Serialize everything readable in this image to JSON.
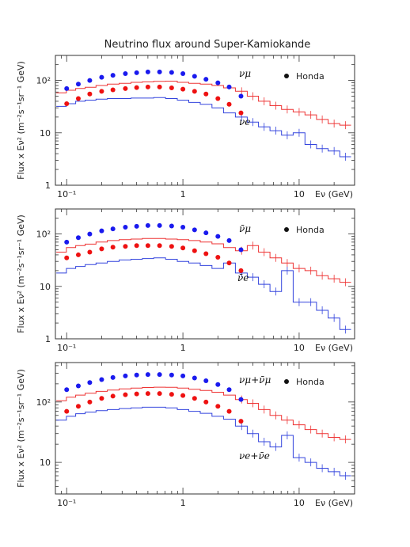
{
  "title": "Neutrino flux around Super-Kamiokande",
  "chart_data": [
    {
      "type": "line",
      "ylabel": "Flux x Eν² (m⁻²s⁻¹sr⁻¹ GeV)",
      "xlabel": "Eν (GeV)",
      "x_scale": "log",
      "y_scale": "log",
      "xlim": [
        0.08,
        30
      ],
      "ylim": [
        1,
        300
      ],
      "x_tick_labels": [
        "10⁻¹",
        "1",
        "10"
      ],
      "y_tick_labels": [
        "1",
        "10",
        "10²"
      ],
      "legend": {
        "marker_label": "Honda",
        "placement": "top-right"
      },
      "annotations": [
        "νμ",
        "νe"
      ],
      "series": [
        {
          "color": "#ee3333",
          "style": "step",
          "x": [
            0.09,
            0.11,
            0.13,
            0.16,
            0.2,
            0.25,
            0.32,
            0.4,
            0.5,
            0.63,
            0.8,
            1.0,
            1.26,
            1.58,
            2.0,
            2.5,
            3.2,
            4.0,
            5.0,
            6.3,
            7.9,
            10,
            12.6,
            15.8,
            20,
            25
          ],
          "values": [
            58,
            65,
            70,
            74,
            80,
            85,
            88,
            92,
            94,
            96,
            97,
            92,
            88,
            85,
            80,
            72,
            62,
            50,
            40,
            33,
            28,
            25,
            22,
            18,
            15,
            14
          ]
        },
        {
          "color": "#3344dd",
          "style": "step",
          "x": [
            0.09,
            0.11,
            0.13,
            0.16,
            0.2,
            0.25,
            0.32,
            0.4,
            0.5,
            0.63,
            0.8,
            1.0,
            1.26,
            1.58,
            2.0,
            2.5,
            3.2,
            4.0,
            5.0,
            6.3,
            7.9,
            10,
            12.6,
            15.8,
            20,
            25
          ],
          "values": [
            32,
            36,
            40,
            42,
            44,
            45,
            45,
            46,
            46,
            47,
            45,
            42,
            38,
            35,
            30,
            24,
            20,
            16,
            13,
            11,
            9,
            10,
            6,
            5,
            4.5,
            3.5
          ]
        },
        {
          "color": "#1a1aee",
          "style": "dots",
          "x": [
            0.1,
            0.126,
            0.158,
            0.2,
            0.25,
            0.32,
            0.4,
            0.5,
            0.63,
            0.8,
            1.0,
            1.26,
            1.58,
            2.0,
            2.5,
            3.16
          ],
          "values": [
            70,
            85,
            100,
            115,
            125,
            135,
            140,
            145,
            145,
            142,
            135,
            120,
            105,
            90,
            75,
            50
          ]
        },
        {
          "color": "#ee1111",
          "style": "dots",
          "x": [
            0.1,
            0.126,
            0.158,
            0.2,
            0.25,
            0.32,
            0.4,
            0.5,
            0.63,
            0.8,
            1.0,
            1.26,
            1.58,
            2.0,
            2.5,
            3.16
          ],
          "values": [
            36,
            45,
            55,
            62,
            66,
            70,
            73,
            75,
            75,
            72,
            68,
            62,
            55,
            45,
            35,
            24
          ]
        }
      ]
    },
    {
      "type": "line",
      "ylabel": "Flux x Eν² (m⁻²s⁻¹sr⁻¹ GeV)",
      "xlabel": "Eν (GeV)",
      "x_scale": "log",
      "y_scale": "log",
      "xlim": [
        0.08,
        30
      ],
      "ylim": [
        1,
        300
      ],
      "x_tick_labels": [
        "10⁻¹",
        "1",
        "10"
      ],
      "y_tick_labels": [
        "1",
        "10",
        "10²"
      ],
      "legend": {
        "marker_label": "Honda",
        "placement": "top-right"
      },
      "annotations": [
        "ν̄μ",
        "ν̄e"
      ],
      "series": [
        {
          "color": "#ee3333",
          "style": "step",
          "x": [
            0.09,
            0.11,
            0.13,
            0.16,
            0.2,
            0.25,
            0.32,
            0.4,
            0.5,
            0.63,
            0.8,
            1.0,
            1.26,
            1.58,
            2.0,
            2.5,
            3.2,
            4.0,
            5.0,
            6.3,
            7.9,
            10,
            12.6,
            15.8,
            20,
            25
          ],
          "values": [
            45,
            55,
            60,
            64,
            70,
            75,
            78,
            80,
            82,
            82,
            80,
            78,
            75,
            70,
            65,
            55,
            48,
            60,
            45,
            35,
            28,
            22,
            20,
            16,
            14,
            12
          ]
        },
        {
          "color": "#3344dd",
          "style": "step",
          "x": [
            0.09,
            0.11,
            0.13,
            0.16,
            0.2,
            0.25,
            0.32,
            0.4,
            0.5,
            0.63,
            0.8,
            1.0,
            1.26,
            1.58,
            2.0,
            2.5,
            3.2,
            4.0,
            5.0,
            6.3,
            7.9,
            10,
            12.6,
            15.8,
            20,
            25
          ],
          "values": [
            18,
            22,
            24,
            26,
            28,
            30,
            32,
            33,
            34,
            35,
            33,
            30,
            28,
            25,
            22,
            28,
            18,
            15,
            11,
            8,
            20,
            5,
            5,
            3.5,
            2.5,
            1.5
          ]
        },
        {
          "color": "#1a1aee",
          "style": "dots",
          "x": [
            0.1,
            0.126,
            0.158,
            0.2,
            0.25,
            0.32,
            0.4,
            0.5,
            0.63,
            0.8,
            1.0,
            1.26,
            1.58,
            2.0,
            2.5,
            3.16
          ],
          "values": [
            70,
            85,
            100,
            115,
            125,
            135,
            140,
            145,
            145,
            142,
            135,
            120,
            105,
            90,
            75,
            50
          ]
        },
        {
          "color": "#ee1111",
          "style": "dots",
          "x": [
            0.1,
            0.126,
            0.158,
            0.2,
            0.25,
            0.32,
            0.4,
            0.5,
            0.63,
            0.8,
            1.0,
            1.26,
            1.58,
            2.0,
            2.5,
            3.16
          ],
          "values": [
            35,
            40,
            45,
            52,
            56,
            58,
            60,
            60,
            60,
            58,
            54,
            48,
            42,
            36,
            28,
            20
          ]
        }
      ]
    },
    {
      "type": "line",
      "ylabel": "Flux x Eν² (m⁻²s⁻¹sr⁻¹ GeV)",
      "xlabel": "Eν (GeV)",
      "x_scale": "log",
      "y_scale": "log",
      "xlim": [
        0.08,
        30
      ],
      "ylim": [
        3,
        450
      ],
      "x_tick_labels": [
        "10⁻¹",
        "1",
        "10"
      ],
      "y_tick_labels": [
        "10",
        "10²"
      ],
      "legend": {
        "marker_label": "Honda",
        "placement": "top-right"
      },
      "annotations": [
        "νμ+ν̄μ",
        "νe+ν̄e"
      ],
      "series": [
        {
          "color": "#ee3333",
          "style": "step",
          "x": [
            0.09,
            0.11,
            0.13,
            0.16,
            0.2,
            0.25,
            0.32,
            0.4,
            0.5,
            0.63,
            0.8,
            1.0,
            1.26,
            1.58,
            2.0,
            2.5,
            3.2,
            4.0,
            5.0,
            6.3,
            7.9,
            10,
            12.6,
            15.8,
            20,
            25
          ],
          "values": [
            105,
            120,
            130,
            140,
            150,
            158,
            165,
            170,
            174,
            176,
            175,
            170,
            162,
            155,
            145,
            130,
            110,
            95,
            75,
            60,
            50,
            42,
            35,
            30,
            26,
            24
          ]
        },
        {
          "color": "#3344dd",
          "style": "step",
          "x": [
            0.09,
            0.11,
            0.13,
            0.16,
            0.2,
            0.25,
            0.32,
            0.4,
            0.5,
            0.63,
            0.8,
            1.0,
            1.26,
            1.58,
            2.0,
            2.5,
            3.2,
            4.0,
            5.0,
            6.3,
            7.9,
            10,
            12.6,
            15.8,
            20,
            25
          ],
          "values": [
            50,
            58,
            64,
            68,
            72,
            75,
            78,
            80,
            82,
            82,
            80,
            75,
            70,
            65,
            58,
            52,
            40,
            30,
            22,
            18,
            28,
            12,
            10,
            8,
            7,
            6
          ]
        },
        {
          "color": "#1a1aee",
          "style": "dots",
          "x": [
            0.1,
            0.126,
            0.158,
            0.2,
            0.25,
            0.32,
            0.4,
            0.5,
            0.63,
            0.8,
            1.0,
            1.26,
            1.58,
            2.0,
            2.5,
            3.16
          ],
          "values": [
            160,
            185,
            210,
            235,
            255,
            270,
            280,
            285,
            285,
            280,
            270,
            250,
            225,
            195,
            160,
            110
          ]
        },
        {
          "color": "#ee1111",
          "style": "dots",
          "x": [
            0.1,
            0.126,
            0.158,
            0.2,
            0.25,
            0.32,
            0.4,
            0.5,
            0.63,
            0.8,
            1.0,
            1.26,
            1.58,
            2.0,
            2.5,
            3.16
          ],
          "values": [
            70,
            85,
            100,
            115,
            125,
            132,
            136,
            138,
            138,
            134,
            128,
            115,
            100,
            85,
            70,
            48
          ]
        }
      ]
    }
  ]
}
